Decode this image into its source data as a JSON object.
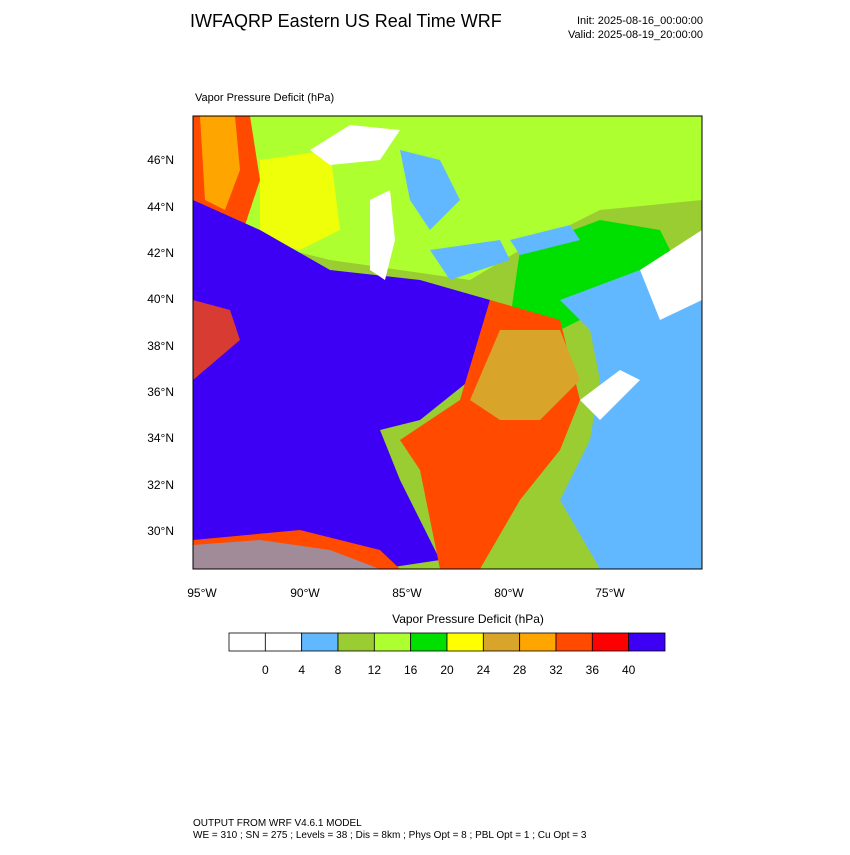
{
  "header": {
    "title": "IWFAQRP Eastern US Real Time WRF",
    "init": "Init: 2025-08-16_00:00:00",
    "valid": "Valid: 2025-08-19_20:00:00"
  },
  "map": {
    "label": "Vapor Pressure Deficit   (hPa)",
    "lat_labels": [
      "46°N",
      "44°N",
      "42°N",
      "40°N",
      "38°N",
      "36°N",
      "34°N",
      "32°N",
      "30°N"
    ],
    "lon_labels": [
      "95°W",
      "90°W",
      "85°W",
      "80°W",
      "75°W"
    ]
  },
  "colorbar": {
    "title": "Vapor Pressure Deficit   (hPa)",
    "levels": [
      0,
      4,
      8,
      12,
      16,
      20,
      24,
      28,
      32,
      36,
      40
    ],
    "colors": [
      "#ffffff",
      "#ffffff",
      "#62b8ff",
      "#9acd32",
      "#adff2f",
      "#00e000",
      "#ffff00",
      "#d9a42a",
      "#ffa500",
      "#ff4a00",
      "#ff0000",
      "#3d00f5"
    ]
  },
  "footer": {
    "line1": "OUTPUT FROM WRF V4.6.1 MODEL",
    "line2": "WE = 310 ; SN = 275 ; Levels = 38 ; Dis = 8km ; Phys Opt = 8 ; PBL Opt = 1 ; Cu Opt = 3"
  }
}
